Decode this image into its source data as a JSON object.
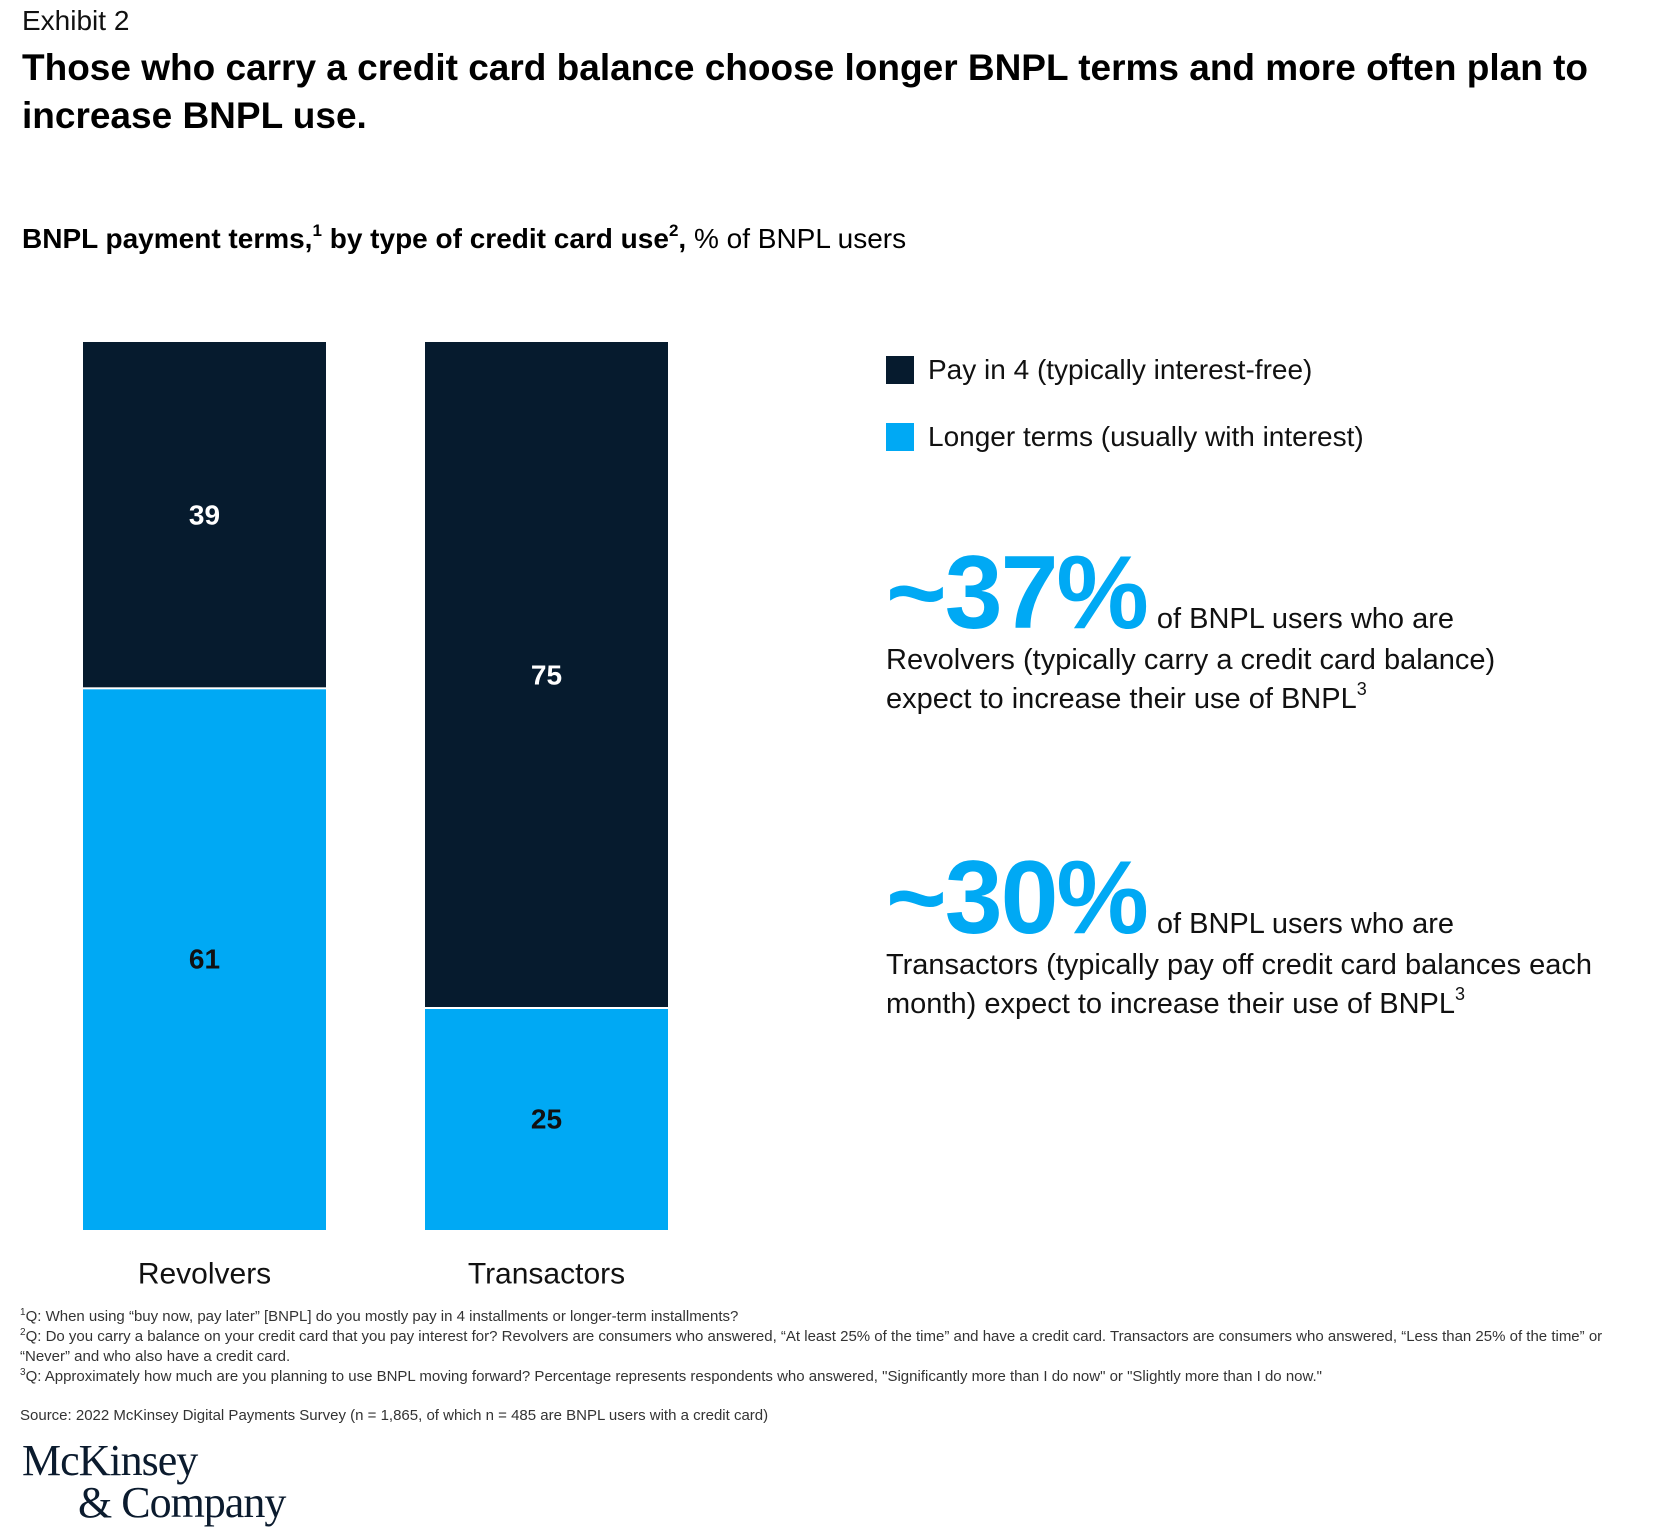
{
  "header": {
    "exhibit": "Exhibit 2",
    "title": "Those who carry a credit card balance choose longer BNPL terms and more often plan to increase BNPL use.",
    "subtitle_bold_1": "BNPL payment terms,",
    "subtitle_sup_1": "1",
    "subtitle_bold_2": " by type of credit card use",
    "subtitle_sup_2": "2",
    "subtitle_bold_3": ",",
    "subtitle_regular": " % of BNPL users"
  },
  "colors": {
    "pay_in_4": "#061b2e",
    "longer_terms": "#00a9f4",
    "callout_accent": "#00a9f4"
  },
  "chart_data": {
    "type": "bar",
    "stacked": true,
    "title": "BNPL payment terms, by type of credit card use, % of BNPL users",
    "xlabel": "",
    "ylabel": "% of BNPL users",
    "ylim": [
      0,
      100
    ],
    "grid": false,
    "categories": [
      "Revolvers",
      "Transactors"
    ],
    "series": [
      {
        "name": "Pay in 4 (typically interest-free)",
        "values": [
          39,
          75
        ],
        "color": "#061b2e",
        "label_color": "#ffffff"
      },
      {
        "name": "Longer terms (usually with interest)",
        "values": [
          61,
          25
        ],
        "color": "#00a9f4",
        "label_color": "#111111"
      }
    ],
    "legend_position": "right"
  },
  "legend": [
    {
      "label": "Pay in 4 (typically interest-free)",
      "color": "#061b2e"
    },
    {
      "label": "Longer terms (usually with interest)",
      "color": "#00a9f4"
    }
  ],
  "callouts": [
    {
      "value": "~37%",
      "lead": "of BNPL users who are",
      "text": "Revolvers (typically carry a credit card balance) expect to increase their use of BNPL",
      "sup": "3"
    },
    {
      "value": "~30%",
      "lead": "of BNPL users who are",
      "text": "Transactors (typically pay off credit card balances each month) expect to increase their use of BNPL",
      "sup": "3"
    }
  ],
  "footnotes": [
    {
      "num": "1",
      "text": "Q: When using “buy now, pay later” [BNPL] do you mostly pay in 4 installments or longer-term installments?"
    },
    {
      "num": "2",
      "text": "Q: Do you carry a balance on your credit card that you pay interest for? Revolvers are consumers who answered, “At least 25% of the time” and have a credit card. Transactors are consumers who answered, “Less than 25% of the time” or “Never” and who also have a credit card."
    },
    {
      "num": "3",
      "text": "Q: Approximately how much are you planning to use BNPL moving forward? Percentage represents respondents who answered, \"Significantly more than I do now\" or \"Slightly more than I do now.\""
    }
  ],
  "source": "Source: 2022 McKinsey Digital Payments Survey (n = 1,865, of which n = 485 are BNPL users with a credit card)",
  "logo": {
    "line1": "McKinsey",
    "line2": "& Company"
  }
}
